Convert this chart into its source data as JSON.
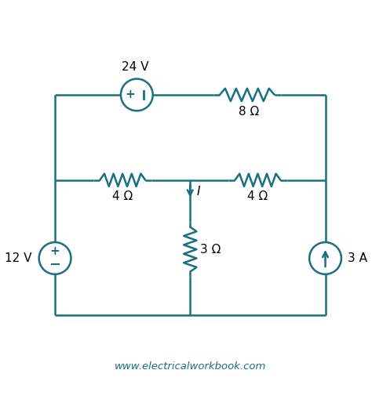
{
  "color": "#1a7080",
  "bg_color": "#ffffff",
  "line_width": 1.8,
  "circuit": {
    "top_voltage_label": "24 V",
    "r8_label": "8 Ω",
    "r4l_label": "4 Ω",
    "r4r_label": "4 Ω",
    "r3_label": "3 Ω",
    "left_voltage_label": "12 V",
    "current_source_label": "3 A",
    "current_label": "I"
  },
  "footer": "www.electricalworkbook.com",
  "footer_color": "#1a7080",
  "footer_fontsize": 9.5
}
